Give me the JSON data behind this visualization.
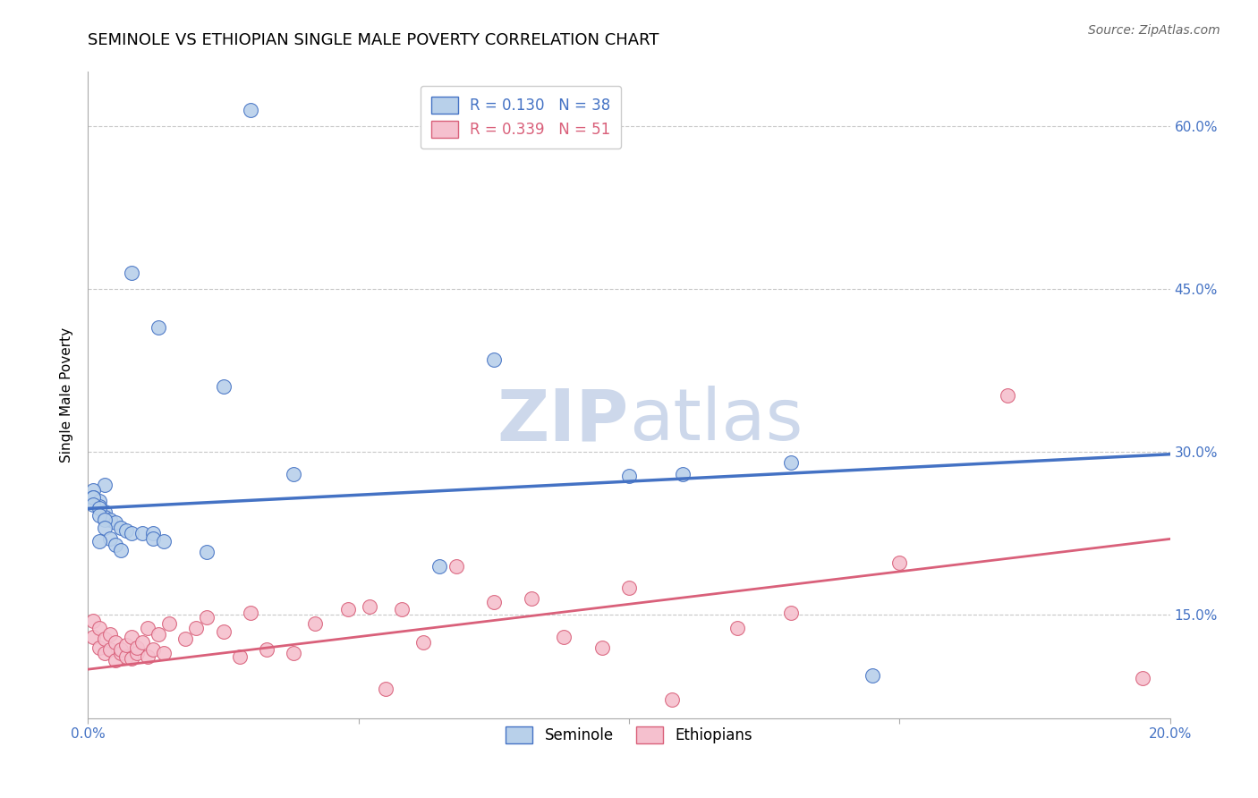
{
  "title": "SEMINOLE VS ETHIOPIAN SINGLE MALE POVERTY CORRELATION CHART",
  "source": "Source: ZipAtlas.com",
  "ylabel": "Single Male Poverty",
  "xlim": [
    0.0,
    0.2
  ],
  "ylim": [
    0.055,
    0.65
  ],
  "xticks": [
    0.0,
    0.05,
    0.1,
    0.15,
    0.2
  ],
  "xtick_labels": [
    "0.0%",
    "",
    "",
    "",
    "20.0%"
  ],
  "yticks": [
    0.15,
    0.3,
    0.45,
    0.6
  ],
  "ytick_labels": [
    "15.0%",
    "30.0%",
    "45.0%",
    "60.0%"
  ],
  "seminole_R": 0.13,
  "seminole_N": 38,
  "ethiopians_R": 0.339,
  "ethiopians_N": 51,
  "seminole_color": "#b8d0ea",
  "seminole_line_color": "#4472c4",
  "ethiopians_color": "#f5c0ce",
  "ethiopians_line_color": "#d9607a",
  "seminole_x": [
    0.03,
    0.008,
    0.013,
    0.003,
    0.001,
    0.001,
    0.002,
    0.002,
    0.003,
    0.003,
    0.004,
    0.005,
    0.006,
    0.007,
    0.008,
    0.01,
    0.012,
    0.012,
    0.014,
    0.001,
    0.001,
    0.002,
    0.002,
    0.003,
    0.003,
    0.004,
    0.005,
    0.006,
    0.11,
    0.065,
    0.1,
    0.145,
    0.13,
    0.075,
    0.038,
    0.025,
    0.022,
    0.002
  ],
  "seminole_y": [
    0.615,
    0.465,
    0.415,
    0.27,
    0.265,
    0.258,
    0.255,
    0.25,
    0.245,
    0.24,
    0.238,
    0.235,
    0.23,
    0.228,
    0.225,
    0.225,
    0.225,
    0.22,
    0.218,
    0.258,
    0.252,
    0.248,
    0.242,
    0.238,
    0.23,
    0.22,
    0.215,
    0.21,
    0.28,
    0.195,
    0.278,
    0.094,
    0.29,
    0.385,
    0.28,
    0.36,
    0.208,
    0.218
  ],
  "ethiopians_x": [
    0.001,
    0.001,
    0.002,
    0.002,
    0.003,
    0.003,
    0.004,
    0.004,
    0.005,
    0.005,
    0.006,
    0.006,
    0.007,
    0.007,
    0.008,
    0.008,
    0.009,
    0.009,
    0.01,
    0.011,
    0.011,
    0.012,
    0.013,
    0.014,
    0.015,
    0.018,
    0.02,
    0.022,
    0.025,
    0.028,
    0.03,
    0.033,
    0.038,
    0.042,
    0.048,
    0.052,
    0.055,
    0.058,
    0.062,
    0.068,
    0.075,
    0.082,
    0.088,
    0.095,
    0.1,
    0.108,
    0.12,
    0.13,
    0.15,
    0.17,
    0.195
  ],
  "ethiopians_y": [
    0.13,
    0.145,
    0.12,
    0.138,
    0.115,
    0.128,
    0.118,
    0.132,
    0.108,
    0.125,
    0.115,
    0.118,
    0.112,
    0.122,
    0.11,
    0.13,
    0.115,
    0.12,
    0.125,
    0.112,
    0.138,
    0.118,
    0.132,
    0.115,
    0.142,
    0.128,
    0.138,
    0.148,
    0.135,
    0.112,
    0.152,
    0.118,
    0.115,
    0.142,
    0.155,
    0.158,
    0.082,
    0.155,
    0.125,
    0.195,
    0.162,
    0.165,
    0.13,
    0.12,
    0.175,
    0.072,
    0.138,
    0.152,
    0.198,
    0.352,
    0.092
  ],
  "background_color": "#ffffff",
  "grid_color": "#c8c8c8",
  "watermark_color": "#cdd8eb",
  "title_fontsize": 13,
  "axis_label_fontsize": 11,
  "tick_fontsize": 11,
  "legend_fontsize": 12,
  "source_fontsize": 10
}
